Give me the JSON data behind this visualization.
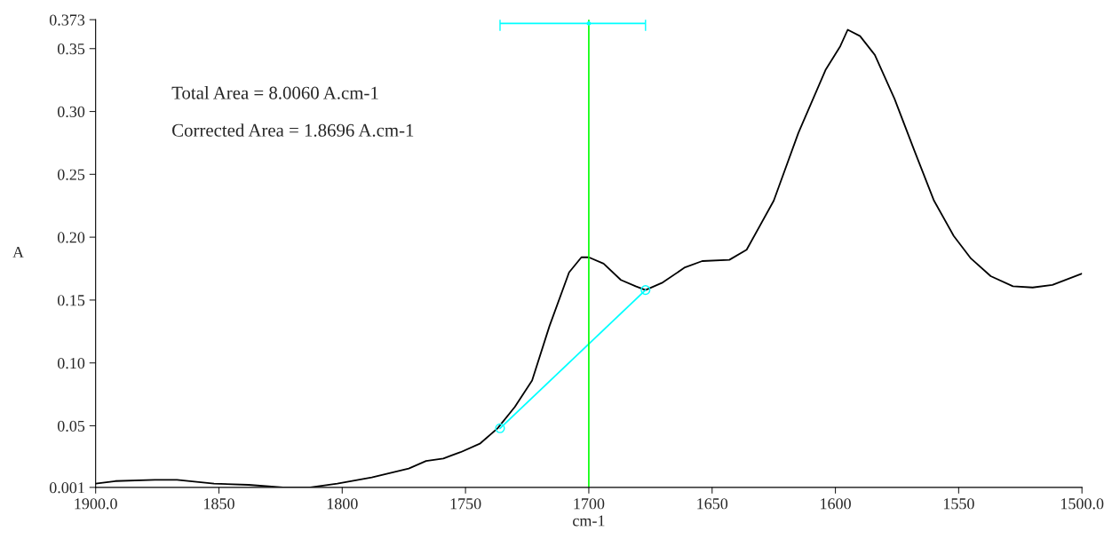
{
  "chart_data": {
    "type": "line",
    "xlabel": "cm-1",
    "ylabel": "A",
    "x": [
      1900,
      1892,
      1876,
      1867,
      1852,
      1838,
      1824,
      1813,
      1802,
      1788,
      1773,
      1766,
      1759,
      1752,
      1744,
      1737,
      1730,
      1723,
      1716,
      1708,
      1703,
      1700,
      1694,
      1687,
      1681,
      1677,
      1670,
      1661,
      1654,
      1643,
      1636,
      1625,
      1615,
      1604,
      1598,
      1595,
      1590,
      1584,
      1576,
      1568,
      1560,
      1552,
      1545,
      1537,
      1528,
      1520,
      1512,
      1500
    ],
    "series": [
      {
        "color": "#000000",
        "values": [
          0.004,
          0.006,
          0.007,
          0.007,
          0.004,
          0.003,
          0.001,
          0.001,
          0.004,
          0.009,
          0.016,
          0.022,
          0.024,
          0.029,
          0.036,
          0.048,
          0.065,
          0.086,
          0.129,
          0.172,
          0.184,
          0.184,
          0.179,
          0.166,
          0.161,
          0.158,
          0.164,
          0.176,
          0.181,
          0.182,
          0.19,
          0.229,
          0.283,
          0.333,
          0.352,
          0.365,
          0.36,
          0.345,
          0.31,
          0.269,
          0.229,
          0.201,
          0.183,
          0.169,
          0.161,
          0.16,
          0.162,
          0.171
        ]
      },
      {
        "type": "line",
        "color": "#00ffff",
        "x": [
          1736,
          1677
        ],
        "values": [
          0.048,
          0.158
        ],
        "marker": "circle"
      },
      {
        "type": "scatter",
        "color": "#00ffff",
        "x": [
          1700
        ],
        "values": [
          0.37
        ],
        "xerrors": [
          [
            1677,
            1736
          ]
        ],
        "marker": "circle"
      }
    ],
    "ref_lines": [
      {
        "axis": "x",
        "value": 1700,
        "color": "#00ff00"
      }
    ],
    "annotations": [
      "Total Area = 8.0060 A.cm-1",
      "Corrected Area = 1.8696 A.cm-1"
    ],
    "xlim": [
      1900,
      1500
    ],
    "xticks": [
      {
        "value": 1900,
        "label": "1900.0"
      },
      1850,
      1800,
      1750,
      1700,
      1650,
      1600,
      1550,
      {
        "value": 1500,
        "label": "1500.0"
      }
    ],
    "ylim": [
      0.001,
      0.373
    ],
    "yticks": [
      0.001,
      0.05,
      {
        "value": 0.1,
        "label": "0.10"
      },
      0.15,
      {
        "value": 0.2,
        "label": "0.20"
      },
      0.25,
      {
        "value": 0.3,
        "label": "0.30"
      },
      0.35,
      0.373
    ],
    "grid": false,
    "legend": false
  }
}
